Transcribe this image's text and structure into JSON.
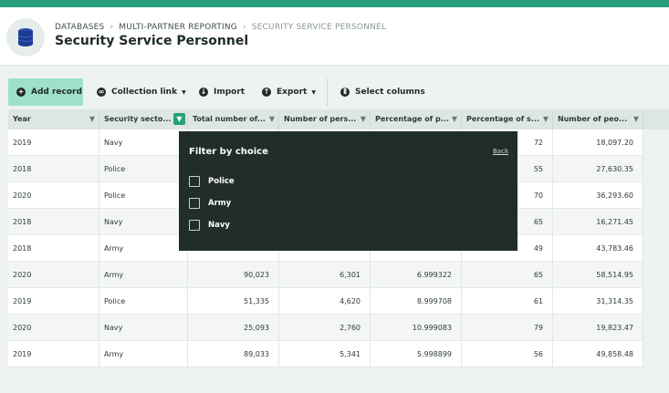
{
  "colors": {
    "accent": "#25a07a",
    "add_button": "#9ee0c8",
    "popup_bg": "#202d2a"
  },
  "header": {
    "icon": "database-icon",
    "breadcrumb": [
      "DATABASES",
      "MULTI-PARTNER REPORTING",
      "SECURITY SERVICE PERSONNEL"
    ],
    "title": "Security Service Personnel"
  },
  "toolbar": {
    "add_record": "Add record",
    "collection_link": "Collection link",
    "import": "Import",
    "export": "Export",
    "select_columns": "Select columns"
  },
  "table": {
    "columns": [
      "Year",
      "Security secto...",
      "Total number of...",
      "Number of pers...",
      "Percentage of p...",
      "Percentage of s...",
      "Number of peo..."
    ],
    "rows": [
      [
        "2019",
        "Navy",
        "",
        "",
        "",
        "72",
        "18,097.20"
      ],
      [
        "2018",
        "Police",
        "",
        "",
        "",
        "55",
        "27,630.35"
      ],
      [
        "2020",
        "Police",
        "",
        "",
        "",
        "70",
        "36,293.60"
      ],
      [
        "2018",
        "Navy",
        "",
        "",
        "",
        "65",
        "16,271.45"
      ],
      [
        "2018",
        "Army",
        "",
        "",
        "",
        "49",
        "43,783.46"
      ],
      [
        "2020",
        "Army",
        "90,023",
        "6,301",
        "6.999322",
        "65",
        "58,514.95"
      ],
      [
        "2019",
        "Police",
        "51,335",
        "4,620",
        "8.999708",
        "61",
        "31,314.35"
      ],
      [
        "2020",
        "Navy",
        "25,093",
        "2,760",
        "10.999083",
        "79",
        "19,823.47"
      ],
      [
        "2019",
        "Army",
        "89,033",
        "5,341",
        "5.998899",
        "56",
        "49,858.48"
      ]
    ]
  },
  "filter_popup": {
    "title": "Filter by choice",
    "back": "Back",
    "options": [
      "Police",
      "Army",
      "Navy"
    ]
  }
}
